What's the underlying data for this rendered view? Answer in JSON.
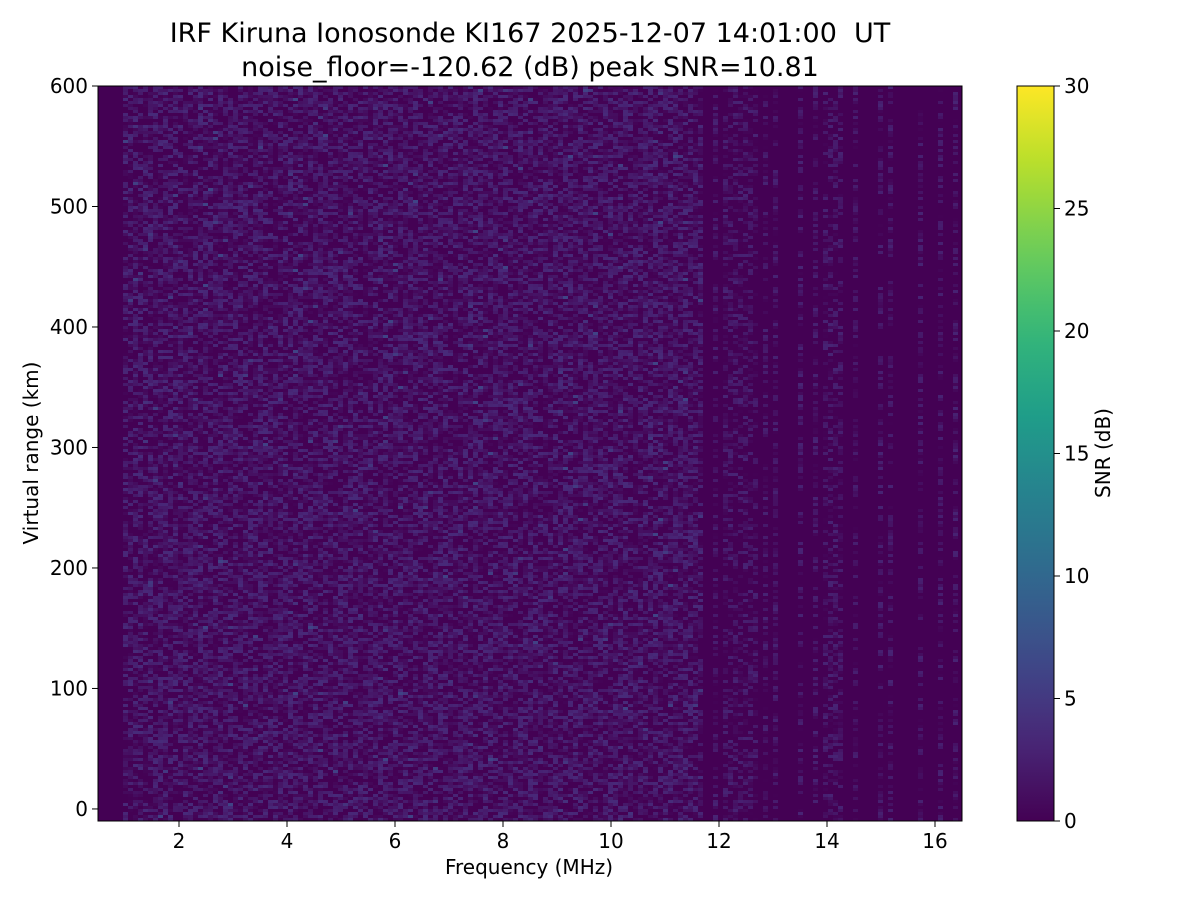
{
  "figure": {
    "title_line1": "IRF Kiruna Ionosonde KI167 2025-12-07 14:01:00  UT",
    "title_line2": "noise_floor=-120.62 (dB) peak SNR=10.81"
  },
  "chart_data": {
    "type": "heatmap",
    "title": "IRF Kiruna Ionosonde KI167 2025-12-07 14:01:00  UT",
    "subtitle": "noise_floor=-120.62 (dB) peak SNR=10.81",
    "xlabel": "Frequency (MHz)",
    "ylabel": "Virtual range (km)",
    "xlim": [
      0.5,
      16.5
    ],
    "ylim": [
      -10,
      600
    ],
    "x_ticks": [
      2,
      4,
      6,
      8,
      10,
      12,
      14,
      16
    ],
    "y_ticks": [
      0,
      100,
      200,
      300,
      400,
      500,
      600
    ],
    "colorbar": {
      "label": "SNR (dB)",
      "range": [
        0,
        30
      ],
      "ticks": [
        0,
        5,
        10,
        15,
        20,
        25,
        30
      ],
      "colormap": "viridis"
    },
    "noise_floor_db": -120.62,
    "peak_snr_db": 10.81,
    "grid": false,
    "empty_band_mhz": [
      0.5,
      0.95
    ],
    "dense_noise_band_mhz": [
      0.95,
      11.7
    ],
    "sparse_channel_band_mhz": [
      11.7,
      16.4
    ],
    "typical_snr_db": [
      0,
      4
    ],
    "background_color": "#440154"
  }
}
